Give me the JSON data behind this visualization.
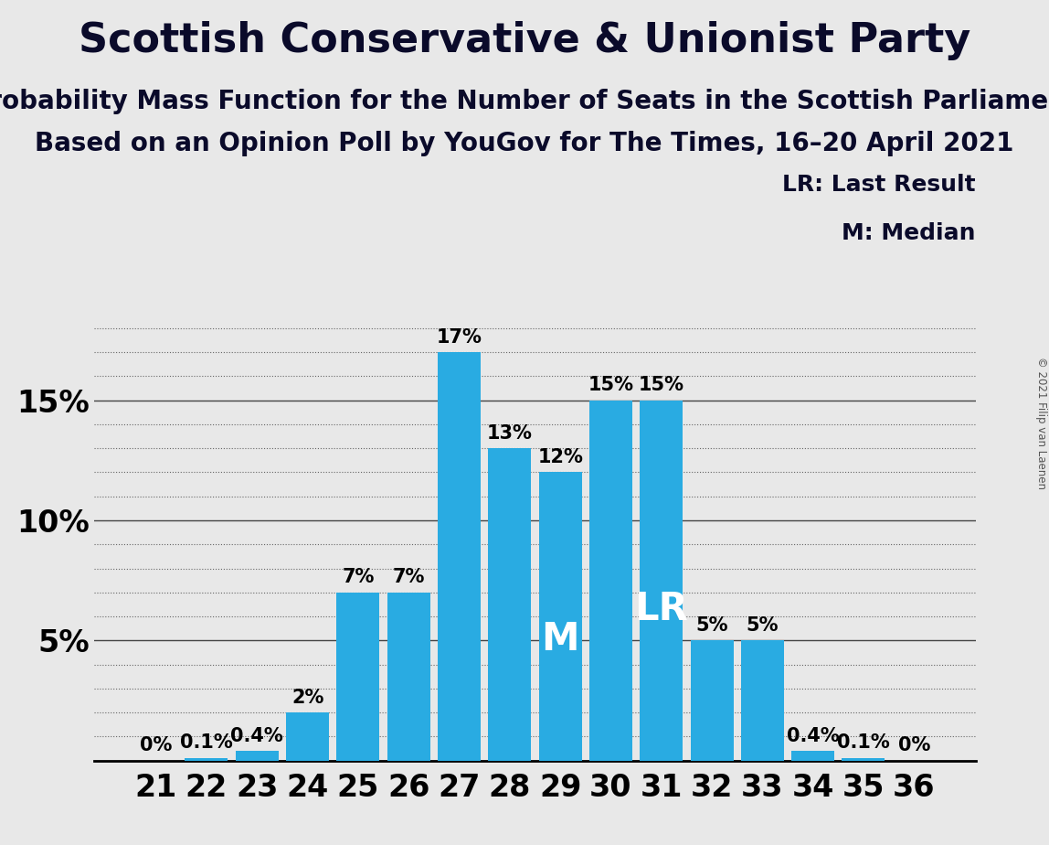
{
  "title": "Scottish Conservative & Unionist Party",
  "subtitle1": "Probability Mass Function for the Number of Seats in the Scottish Parliament",
  "subtitle2": "Based on an Opinion Poll by YouGov for The Times, 16–20 April 2021",
  "copyright": "© 2021 Filip van Laenen",
  "categories": [
    21,
    22,
    23,
    24,
    25,
    26,
    27,
    28,
    29,
    30,
    31,
    32,
    33,
    34,
    35,
    36
  ],
  "values": [
    0.0,
    0.1,
    0.4,
    2.0,
    7.0,
    7.0,
    17.0,
    13.0,
    12.0,
    15.0,
    15.0,
    5.0,
    5.0,
    0.4,
    0.1,
    0.0
  ],
  "labels": [
    "0%",
    "0.1%",
    "0.4%",
    "2%",
    "7%",
    "7%",
    "17%",
    "13%",
    "12%",
    "15%",
    "15%",
    "5%",
    "5%",
    "0.4%",
    "0.1%",
    "0%"
  ],
  "bar_color": "#29ABE2",
  "background_color": "#E8E8E8",
  "median_seat": 29,
  "last_result_seat": 31,
  "legend_lr": "LR: Last Result",
  "legend_m": "M: Median",
  "major_ticks": [
    5,
    10,
    15
  ],
  "minor_tick_step": 1,
  "ylim": [
    0,
    19
  ],
  "title_fontsize": 32,
  "subtitle_fontsize": 20,
  "bar_label_fontsize": 15,
  "axis_tick_fontsize": 24,
  "annotation_fontsize": 30,
  "legend_fontsize": 18
}
